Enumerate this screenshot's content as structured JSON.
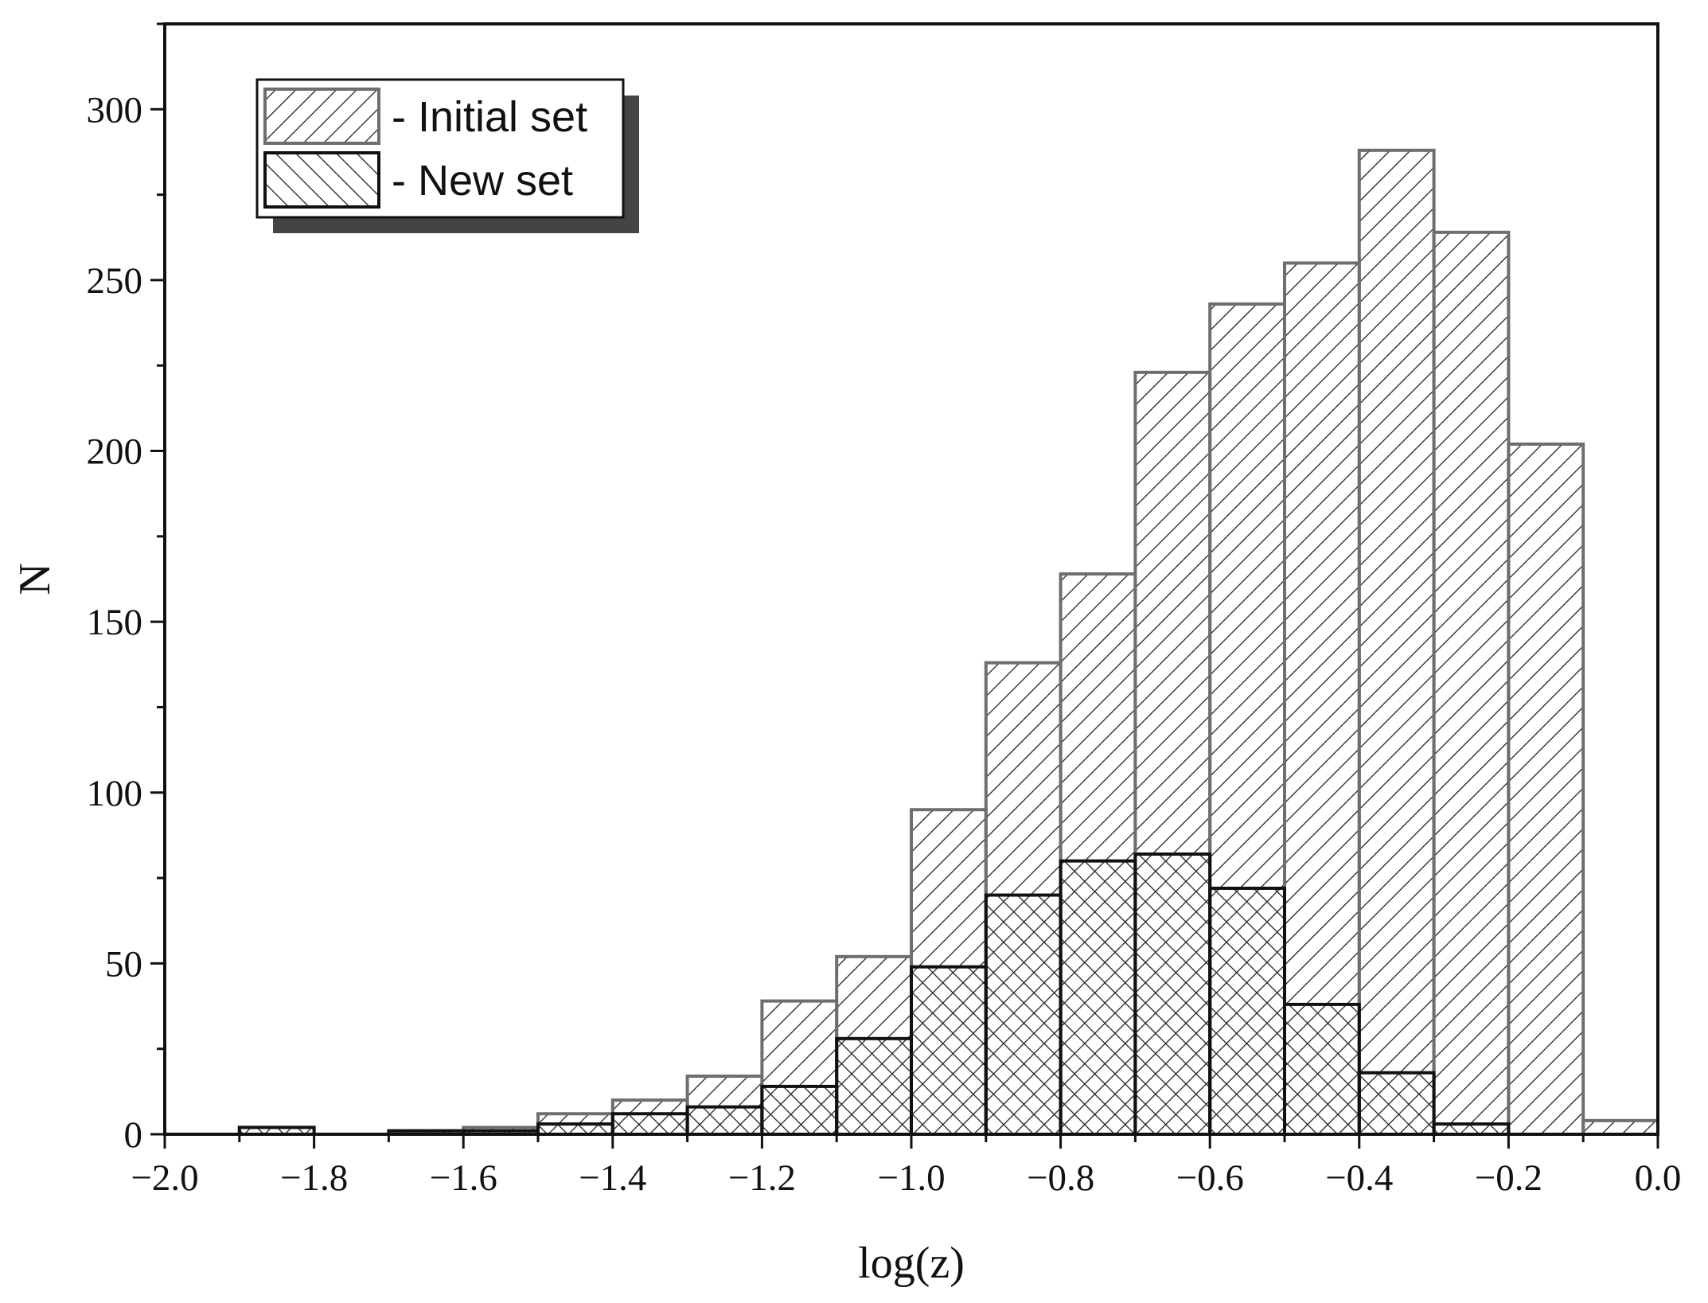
{
  "chart_data": {
    "type": "bar",
    "subtype": "overlaid histogram",
    "xlabel": "log(z)",
    "ylabel": "N",
    "xlim": [
      -2.0,
      0.0
    ],
    "ylim": [
      0,
      325
    ],
    "x_ticks": [
      "−2.0",
      "−1.8",
      "−1.6",
      "−1.4",
      "−1.2",
      "−1.0",
      "−0.8",
      "−0.6",
      "−0.4",
      "−0.2",
      "0.0"
    ],
    "y_ticks": [
      "0",
      "50",
      "100",
      "150",
      "200",
      "250",
      "300"
    ],
    "bin_edges": [
      -1.9,
      -1.8,
      -1.7,
      -1.6,
      -1.5,
      -1.4,
      -1.3,
      -1.2,
      -1.1,
      -1.0,
      -0.9,
      -0.8,
      -0.7,
      -0.6,
      -0.5,
      -0.4,
      -0.3,
      -0.2,
      -0.1,
      0.0
    ],
    "series": [
      {
        "name": "- Initial set",
        "hatch": "backslash",
        "edge_color": "#6e6e6e",
        "values": [
          2,
          0,
          1,
          2,
          6,
          10,
          17,
          39,
          52,
          95,
          138,
          164,
          223,
          243,
          255,
          288,
          264,
          202,
          4
        ]
      },
      {
        "name": "- New set",
        "hatch": "slash",
        "edge_color": "#111111",
        "values": [
          2,
          0,
          1,
          1,
          3,
          6,
          8,
          14,
          28,
          49,
          70,
          80,
          82,
          72,
          38,
          18,
          3,
          0,
          0
        ]
      }
    ],
    "legend": {
      "position": "top-left"
    },
    "grid": false
  }
}
